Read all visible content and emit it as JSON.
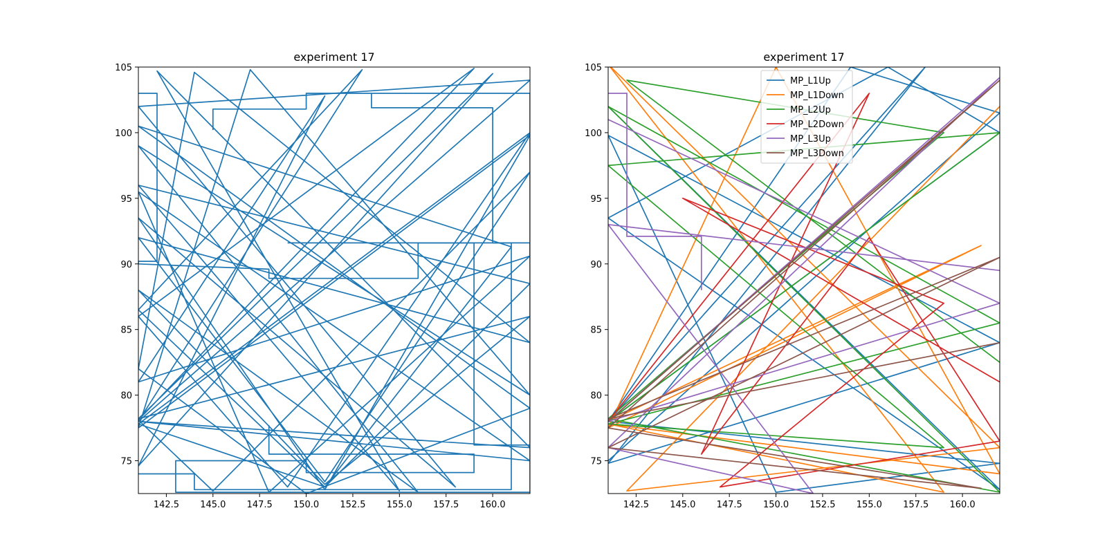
{
  "chart_data": [
    {
      "type": "line",
      "title": "experiment 17",
      "xlabel": "",
      "ylabel": "",
      "xlim": [
        141.0,
        162.0
      ],
      "ylim": [
        72.5,
        105.0
      ],
      "xticks": [
        142.5,
        145.0,
        147.5,
        150.0,
        152.5,
        155.0,
        157.5,
        160.0
      ],
      "xtick_labels": [
        "142.5",
        "145.0",
        "147.5",
        "150.0",
        "152.5",
        "155.0",
        "157.5",
        "160.0"
      ],
      "yticks": [
        75,
        80,
        85,
        90,
        95,
        100,
        105
      ],
      "ytick_labels": [
        "75",
        "80",
        "85",
        "90",
        "95",
        "100",
        "105"
      ],
      "grid": false,
      "legend": false,
      "series": [
        {
          "color": "#1f77b4",
          "x": [
            141.0,
            162.0,
            141.0,
            158.0,
            141.0,
            151.0,
            162.0,
            141.0,
            147.0,
            162.0,
            141.0,
            156.0,
            141.0,
            151.0,
            162.0,
            141.0,
            160.0,
            141.0,
            151.0,
            141.0,
            162.0,
            148.0,
            141.0,
            162.0,
            141.0,
            153.0,
            141.0,
            151.0,
            161.0,
            141.0,
            162.0,
            150.0,
            141.0,
            144.0,
            162.0,
            141.0,
            151.0,
            162.0,
            145.0,
            141.0,
            159.0,
            141.0,
            149.0,
            162.0,
            141.0,
            151.0,
            162.0,
            141.0,
            155.0,
            142.0,
            162.0,
            141.0
          ],
          "y": [
            78.0,
            104.0,
            102.0,
            73.0,
            93.5,
            72.8,
            99.8,
            77.5,
            104.8,
            80.0,
            99.0,
            72.6,
            88.0,
            73.2,
            86.0,
            78.2,
            104.5,
            74.6,
            102.8,
            81.0,
            90.6,
            72.6,
            95.5,
            75.0,
            78.0,
            104.8,
            86.5,
            73.0,
            91.3,
            100.5,
            79.0,
            72.5,
            82.0,
            104.6,
            84.0,
            92.0,
            73.4,
            97.0,
            72.7,
            78.1,
            104.9,
            86.0,
            73.0,
            100.0,
            77.8,
            73.0,
            88.5,
            96.0,
            72.7,
            104.7,
            76.0,
            78.0
          ]
        },
        {
          "color": "#1f77b4",
          "x": [
            141.0,
            141.0,
            142.0,
            142.0,
            141.0,
            141.0,
            148.0,
            148.0,
            156.0,
            156.0,
            162.0,
            162.0
          ],
          "y": [
            103.0,
            103.0,
            103.0,
            90.2,
            90.2,
            90.0,
            89.6,
            88.9,
            88.9,
            91.6,
            91.6,
            90.6
          ]
        },
        {
          "color": "#1f77b4",
          "x": [
            145.0,
            145.0,
            150.0,
            150.0,
            162.0,
            162.0,
            143.0,
            143.0,
            150.0,
            150.0,
            159.0,
            159.0,
            148.0,
            148.0
          ],
          "y": [
            100.2,
            101.8,
            101.8,
            103.0,
            103.0,
            72.6,
            72.6,
            75.0,
            75.0,
            74.1,
            74.1,
            75.5,
            75.5,
            77.7
          ]
        },
        {
          "color": "#1f77b4",
          "x": [
            153.5,
            153.5,
            160.0,
            160.0,
            161.0,
            161.0,
            144.0,
            144.0,
            141.0
          ],
          "y": [
            103.0,
            101.9,
            101.9,
            91.6,
            91.6,
            72.8,
            72.8,
            74.0,
            74.0
          ]
        },
        {
          "color": "#1f77b4",
          "x": [
            149.0,
            149.0,
            159.0,
            159.0,
            162.0
          ],
          "y": [
            91.6,
            91.6,
            91.6,
            76.2,
            76.2
          ]
        }
      ]
    },
    {
      "type": "line",
      "title": "experiment 17",
      "xlabel": "",
      "ylabel": "",
      "xlim": [
        141.0,
        162.0
      ],
      "ylim": [
        72.5,
        105.0
      ],
      "xticks": [
        142.5,
        145.0,
        147.5,
        150.0,
        152.5,
        155.0,
        157.5,
        160.0
      ],
      "xtick_labels": [
        "142.5",
        "145.0",
        "147.5",
        "150.0",
        "152.5",
        "155.0",
        "157.5",
        "160.0"
      ],
      "yticks": [
        75,
        80,
        85,
        90,
        95,
        100,
        105
      ],
      "ytick_labels": [
        "75",
        "80",
        "85",
        "90",
        "95",
        "100",
        "105"
      ],
      "grid": false,
      "legend": true,
      "legend_position": "upper-center",
      "series": [
        {
          "name": "MP_L1Up",
          "color": "#1f77b4",
          "x": [
            141.0,
            162.0,
            141.0,
            156.0,
            162.0,
            141.0,
            158.0,
            141.0,
            162.0,
            141.0,
            150.0,
            162.0,
            141.0,
            154.0,
            162.0,
            141.0
          ],
          "y": [
            102.0,
            72.8,
            93.5,
            105.0,
            100.0,
            78.0,
            105.0,
            74.8,
            84.0,
            99.8,
            72.6,
            74.8,
            78.0,
            105.0,
            101.5,
            75.0
          ]
        },
        {
          "name": "MP_L1Down",
          "color": "#ff7f0e",
          "x": [
            141.0,
            161.0,
            141.0,
            150.0,
            162.0,
            141.0,
            159.0,
            141.0,
            162.0,
            142.0,
            162.0
          ],
          "y": [
            78.0,
            91.4,
            77.5,
            105.0,
            74.0,
            77.8,
            72.6,
            105.2,
            76.0,
            72.7,
            102.0
          ]
        },
        {
          "name": "MP_L2Up",
          "color": "#2ca02c",
          "x": [
            141.0,
            162.0,
            141.0,
            159.0,
            141.0,
            162.0,
            141.0,
            162.0,
            141.0,
            159.0,
            142.0,
            162.0
          ],
          "y": [
            78.0,
            100.0,
            97.5,
            76.0,
            77.8,
            85.5,
            102.0,
            72.6,
            78.2,
            100.0,
            104.0,
            82.5
          ]
        },
        {
          "name": "MP_L2Down",
          "color": "#d62728",
          "x": [
            141.0,
            155.0,
            146.0,
            155.0,
            162.0,
            147.0,
            159.0,
            145.0,
            162.0
          ],
          "y": [
            78.0,
            103.0,
            75.5,
            92.0,
            76.5,
            73.0,
            87.0,
            95.0,
            81.0
          ]
        },
        {
          "name": "MP_L3Up",
          "color": "#9467bd",
          "x": [
            141.0,
            162.0,
            141.0,
            162.0,
            141.0,
            152.0,
            141.0,
            162.0
          ],
          "y": [
            101.0,
            87.0,
            78.0,
            104.2,
            76.0,
            72.5,
            93.0,
            89.5
          ],
          "step_x": [
            141.0,
            142.0,
            142.0,
            146.0,
            146.0
          ],
          "step_y": [
            103.0,
            103.0,
            92.1,
            92.1,
            88.0
          ]
        },
        {
          "name": "MP_L3Down",
          "color": "#8c564b",
          "x": [
            141.0,
            162.0,
            141.0,
            161.0,
            141.0,
            162.0,
            141.0,
            162.0
          ],
          "y": [
            78.0,
            104.0,
            77.5,
            72.9,
            76.0,
            90.5,
            78.2,
            84.0
          ]
        }
      ]
    }
  ]
}
